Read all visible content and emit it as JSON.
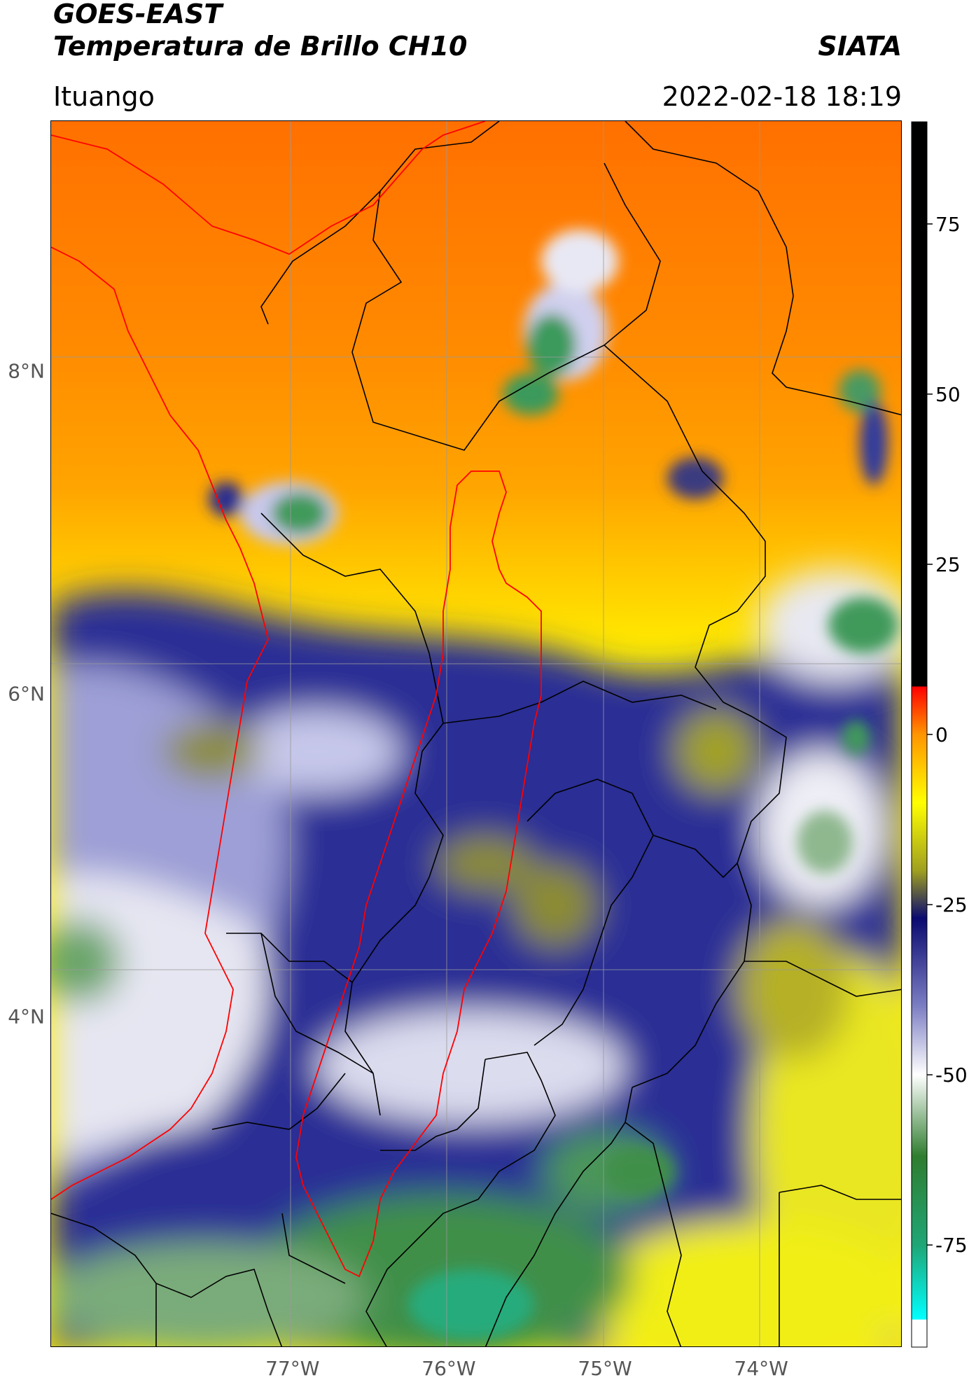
{
  "header": {
    "title_line1": "GOES-EAST",
    "title_line2": "Temperatura de Brillo CH10",
    "organization": "SIATA",
    "region": "Ituango",
    "datetime": "2022-02-18 18:19"
  },
  "map": {
    "latitude_labels": [
      "8°N",
      "6°N",
      "4°N"
    ],
    "longitude_labels": [
      "77°W",
      "76°W",
      "75°W",
      "74°W"
    ],
    "lat_values": [
      8,
      6,
      4
    ],
    "lon_values": [
      -77,
      -76,
      -75,
      -74
    ],
    "lon_range": [
      -78.55,
      -73.1
    ],
    "lat_range": [
      1.95,
      9.55
    ],
    "colors": {
      "warm_orange": "#ff7a00",
      "orange": "#ff9e00",
      "yellow": "#ffee00",
      "olive": "#9f9f24",
      "navy": "#13198a",
      "lavender": "#a8aad8",
      "white": "#f4f4f4",
      "green": "#3b8e3b",
      "teal": "#22b07c",
      "boundary_red": "#ff0000",
      "boundary_black": "#000000",
      "grid": "#9a9a9a"
    }
  },
  "colorbar": {
    "tick_labels": [
      "75",
      "50",
      "25",
      "0",
      "-25",
      "-50",
      "-75"
    ],
    "tick_values": [
      75,
      50,
      25,
      0,
      -25,
      -50,
      -75
    ],
    "min": -90,
    "max": 90,
    "stops": [
      {
        "value": -90,
        "color": "#ffffff"
      },
      {
        "value": -86,
        "color": "#ffffff"
      },
      {
        "value": -85.9,
        "color": "#00ffff"
      },
      {
        "value": -75,
        "color": "#1fa676"
      },
      {
        "value": -62,
        "color": "#2f7d2f"
      },
      {
        "value": -50,
        "color": "#ffffff"
      },
      {
        "value": -40,
        "color": "#7d7fc4"
      },
      {
        "value": -27,
        "color": "#0a0a70"
      },
      {
        "value": -20,
        "color": "#9f9f20"
      },
      {
        "value": -10,
        "color": "#ffff00"
      },
      {
        "value": 0,
        "color": "#ff9500"
      },
      {
        "value": 7,
        "color": "#ff0000"
      },
      {
        "value": 7.1,
        "color": "#000000"
      },
      {
        "value": 90,
        "color": "#000000"
      }
    ]
  }
}
